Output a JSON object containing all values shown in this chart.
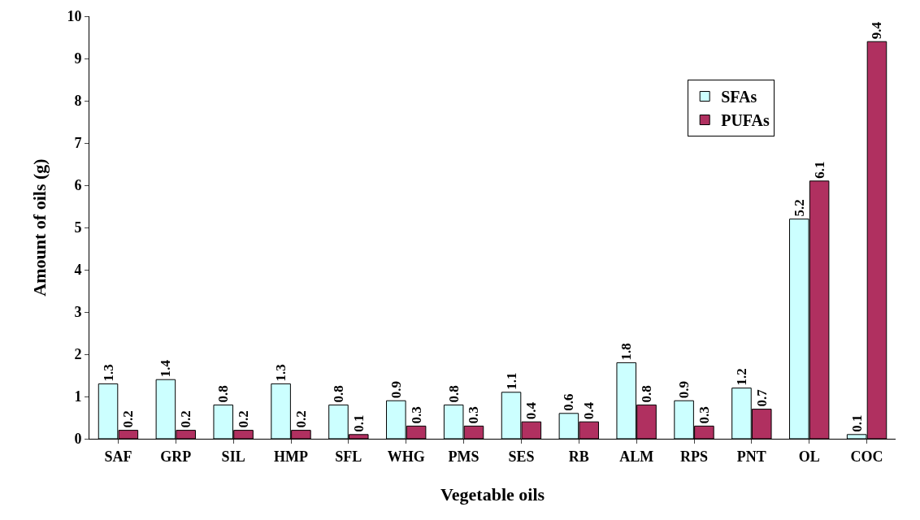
{
  "chart_data": {
    "type": "bar",
    "xlabel": "Vegetable oils",
    "ylabel": "Amount of oils (g)",
    "categories": [
      "SAF",
      "GRP",
      "SIL",
      "HMP",
      "SFL",
      "WHG",
      "PMS",
      "SES",
      "RB",
      "ALM",
      "RPS",
      "PNT",
      "OL",
      "COC"
    ],
    "series": [
      {
        "name": "SFAs",
        "color": "#ccffff",
        "values": [
          1.3,
          1.4,
          0.8,
          1.3,
          0.8,
          0.9,
          0.8,
          1.1,
          0.6,
          1.8,
          0.9,
          1.2,
          5.2,
          0.1
        ]
      },
      {
        "name": "PUFAs",
        "color": "#b03060",
        "values": [
          0.2,
          0.2,
          0.2,
          0.2,
          0.1,
          0.3,
          0.3,
          0.4,
          0.4,
          0.8,
          0.3,
          0.7,
          6.1,
          9.4
        ]
      }
    ],
    "ylim": [
      0,
      10
    ],
    "yticks": [
      0,
      1,
      2,
      3,
      4,
      5,
      6,
      7,
      8,
      9,
      10
    ],
    "data_labels": true,
    "legend": "top right",
    "grid": false
  }
}
